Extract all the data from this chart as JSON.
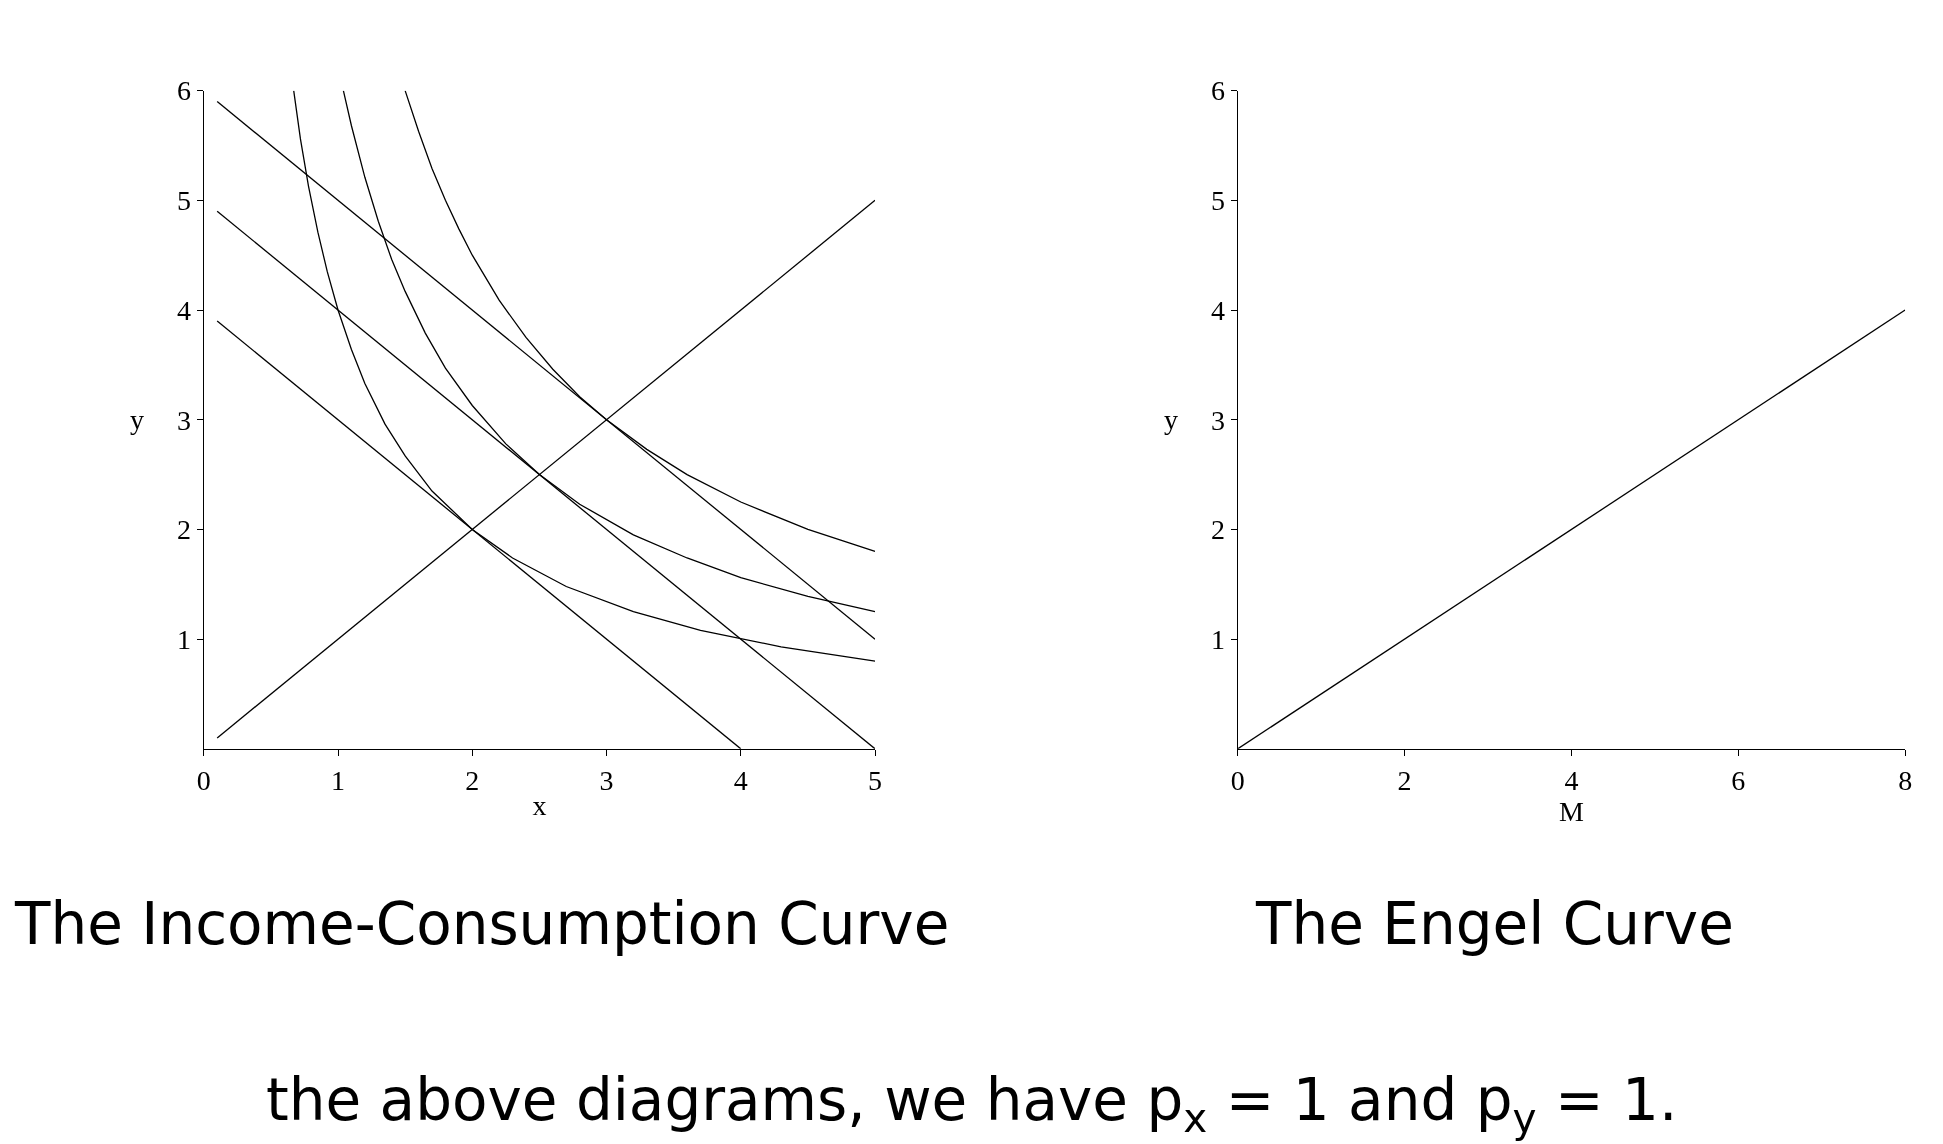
{
  "chart_data": [
    {
      "type": "line",
      "title": "The Income-Consumption Curve",
      "xlabel": "x",
      "ylabel": "y",
      "xlim": [
        0,
        5
      ],
      "ylim": [
        0,
        6
      ],
      "xticks": [
        0,
        1,
        2,
        3,
        4,
        5
      ],
      "yticks": [
        1,
        2,
        3,
        4,
        5,
        6
      ],
      "marker": "none",
      "line_style": "solid",
      "series": [
        {
          "color": "#000000",
          "x": [
            0.1,
            5
          ],
          "values": [
            5.9,
            1
          ]
        },
        {
          "color": "#000000",
          "x": [
            0.1,
            5
          ],
          "values": [
            4.9,
            0
          ]
        },
        {
          "color": "#000000",
          "x": [
            0.1,
            4
          ],
          "values": [
            3.9,
            0
          ]
        },
        {
          "color": "#000000",
          "x": [
            1.5,
            1.6,
            1.7,
            1.8,
            1.9,
            2,
            2.2,
            2.4,
            2.6,
            2.8,
            3,
            3.3,
            3.6,
            4,
            4.5,
            5
          ],
          "values": [
            6,
            5.63,
            5.29,
            5,
            4.74,
            4.5,
            4.09,
            3.75,
            3.46,
            3.21,
            3,
            2.73,
            2.5,
            2.25,
            2,
            1.8
          ]
        },
        {
          "color": "#000000",
          "x": [
            1.04,
            1.1,
            1.2,
            1.3,
            1.4,
            1.5,
            1.65,
            1.8,
            2,
            2.25,
            2.5,
            2.8,
            3.2,
            3.6,
            4,
            4.5,
            5
          ],
          "values": [
            6,
            5.68,
            5.21,
            4.81,
            4.46,
            4.17,
            3.79,
            3.47,
            3.13,
            2.78,
            2.5,
            2.23,
            1.95,
            1.74,
            1.56,
            1.39,
            1.25
          ]
        },
        {
          "color": "#000000",
          "x": [
            0.67,
            0.72,
            0.78,
            0.85,
            0.92,
            1,
            1.1,
            1.2,
            1.35,
            1.5,
            1.7,
            2,
            2.3,
            2.7,
            3.2,
            3.7,
            4.3,
            5
          ],
          "values": [
            6,
            5.56,
            5.13,
            4.71,
            4.35,
            4,
            3.64,
            3.33,
            2.96,
            2.67,
            2.35,
            2,
            1.74,
            1.48,
            1.25,
            1.08,
            0.93,
            0.8
          ]
        },
        {
          "color": "#000000",
          "x": [
            0.1,
            5
          ],
          "values": [
            0.1,
            5
          ]
        }
      ],
      "annotations": [
        "the above diagrams, we have p$_{x}$ = 1 and p$_{y}$ = 1."
      ]
    },
    {
      "type": "line",
      "title": "The Engel Curve",
      "xlabel": "M",
      "ylabel": "y",
      "xlim": [
        0,
        8
      ],
      "ylim": [
        0,
        6
      ],
      "xticks": [
        0,
        2,
        4,
        6,
        8
      ],
      "yticks": [
        1,
        2,
        3,
        4,
        5,
        6
      ],
      "marker": "none",
      "line_style": "solid",
      "series": [
        {
          "color": "#000000",
          "x": [
            0,
            8
          ],
          "values": [
            0,
            4
          ]
        }
      ]
    }
  ]
}
